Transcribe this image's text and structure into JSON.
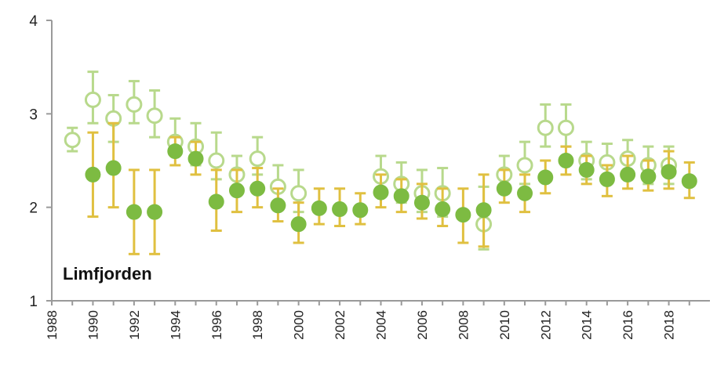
{
  "chart_data": {
    "type": "scatter",
    "title": "",
    "panel_label": "Limfjorden",
    "xlabel": "",
    "ylabel": "",
    "xlim": [
      1988,
      2020
    ],
    "ylim": [
      1,
      4
    ],
    "y_ticks": [
      "1",
      "2",
      "3",
      "4"
    ],
    "x_ticks": [
      "1988",
      "1990",
      "1992",
      "1994",
      "1996",
      "1998",
      "2000",
      "2002",
      "2004",
      "2006",
      "2008",
      "2010",
      "2012",
      "2014",
      "2016",
      "2018"
    ],
    "colors": {
      "filled": "#7dbb42",
      "open": "#b8d98c",
      "error": "#e0c040"
    },
    "series": [
      {
        "style": "open",
        "x": [
          1989,
          1990,
          1991,
          1992,
          1993,
          1994,
          1995,
          1996,
          1997,
          1998,
          1999,
          2000,
          2004,
          2005,
          2006,
          2007,
          2009,
          2010,
          2011,
          2012,
          2013,
          2014,
          2015,
          2016,
          2017,
          2018
        ],
        "y": [
          2.72,
          3.15,
          2.95,
          3.1,
          2.98,
          2.7,
          2.65,
          2.5,
          2.35,
          2.52,
          2.22,
          2.15,
          2.33,
          2.25,
          2.15,
          2.15,
          1.82,
          2.35,
          2.45,
          2.85,
          2.85,
          2.5,
          2.48,
          2.52,
          2.45,
          2.45
        ],
        "lower": [
          2.6,
          2.9,
          2.7,
          2.9,
          2.75,
          2.55,
          2.45,
          2.3,
          2.15,
          2.35,
          2.0,
          1.95,
          2.15,
          2.05,
          1.95,
          1.9,
          1.55,
          2.15,
          2.25,
          2.65,
          2.65,
          2.3,
          2.3,
          2.35,
          2.25,
          2.25
        ],
        "upper": [
          2.85,
          3.45,
          3.2,
          3.35,
          3.25,
          2.95,
          2.9,
          2.8,
          2.55,
          2.75,
          2.45,
          2.4,
          2.55,
          2.48,
          2.4,
          2.42,
          2.22,
          2.55,
          2.7,
          3.1,
          3.1,
          2.7,
          2.68,
          2.72,
          2.65,
          2.65
        ]
      },
      {
        "style": "filled",
        "x": [
          1990,
          1991,
          1992,
          1993,
          1994,
          1995,
          1996,
          1997,
          1998,
          1999,
          2000,
          2001,
          2002,
          2003,
          2004,
          2005,
          2006,
          2007,
          2008,
          2009,
          2010,
          2011,
          2012,
          2013,
          2014,
          2015,
          2016,
          2017,
          2018,
          2019
        ],
        "y": [
          2.35,
          2.42,
          1.95,
          1.95,
          2.6,
          2.52,
          2.06,
          2.18,
          2.2,
          2.02,
          1.82,
          1.99,
          1.98,
          1.97,
          2.16,
          2.12,
          2.05,
          1.98,
          1.92,
          1.97,
          2.2,
          2.15,
          2.32,
          2.5,
          2.4,
          2.3,
          2.35,
          2.33,
          2.38,
          2.28
        ],
        "lower": [
          1.9,
          2.0,
          1.5,
          1.5,
          2.45,
          2.35,
          1.75,
          1.95,
          2.0,
          1.85,
          1.62,
          1.82,
          1.8,
          1.82,
          2.0,
          1.95,
          1.88,
          1.8,
          1.62,
          1.58,
          2.05,
          1.95,
          2.15,
          2.35,
          2.25,
          2.12,
          2.2,
          2.18,
          2.2,
          2.1
        ],
        "upper": [
          2.8,
          2.9,
          2.4,
          2.4,
          2.75,
          2.7,
          2.4,
          2.4,
          2.42,
          2.2,
          2.05,
          2.2,
          2.2,
          2.15,
          2.35,
          2.3,
          2.25,
          2.2,
          2.2,
          2.35,
          2.4,
          2.35,
          2.5,
          2.65,
          2.55,
          2.45,
          2.55,
          2.5,
          2.6,
          2.48
        ]
      }
    ]
  }
}
